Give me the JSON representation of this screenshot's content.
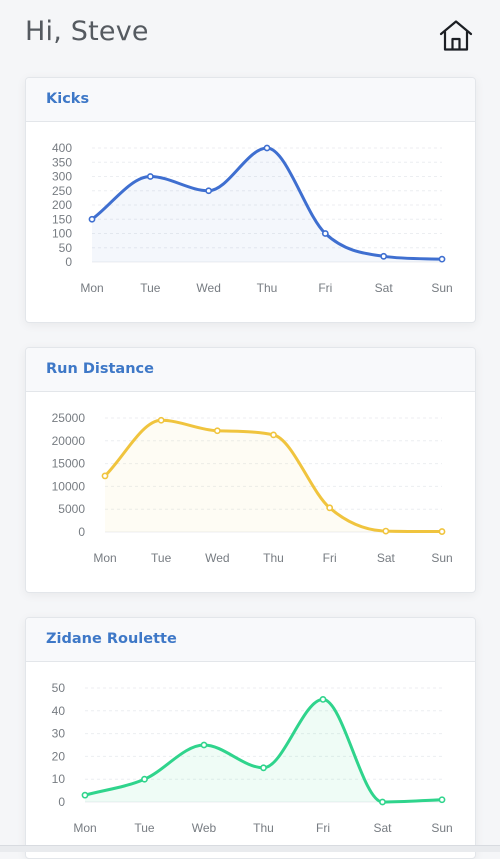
{
  "header": {
    "greeting": "Hi, Steve",
    "home_icon": "home-icon"
  },
  "colors": {
    "title": "#3e78c7",
    "kicks": "#3f6fd0",
    "run": "#f0c43e",
    "zidane": "#2fd48c"
  },
  "cards": [
    {
      "title": "Kicks"
    },
    {
      "title": "Run Distance"
    },
    {
      "title": "Zidane Roulette"
    }
  ],
  "chart_data": [
    {
      "type": "area",
      "title": "Kicks",
      "categories": [
        "Mon",
        "Tue",
        "Wed",
        "Thu",
        "Fri",
        "Sat",
        "Sun"
      ],
      "values": [
        150,
        300,
        250,
        400,
        100,
        20,
        10
      ],
      "yticks": [
        0,
        50,
        100,
        150,
        200,
        250,
        300,
        350,
        400
      ],
      "ylim": [
        0,
        400
      ],
      "color": "#3f6fd0",
      "fill": "rgba(63,111,208,0.06)",
      "grid": true
    },
    {
      "type": "area",
      "title": "Run Distance",
      "categories": [
        "Mon",
        "Tue",
        "Wed",
        "Thu",
        "Fri",
        "Sat",
        "Sun"
      ],
      "values": [
        12300,
        24500,
        22200,
        21300,
        5300,
        200,
        100
      ],
      "yticks": [
        0,
        5000,
        10000,
        15000,
        20000,
        25000
      ],
      "ylim": [
        0,
        25000
      ],
      "color": "#f0c43e",
      "fill": "rgba(240,196,62,0.06)",
      "grid": true
    },
    {
      "type": "area",
      "title": "Zidane Roulette",
      "categories": [
        "Mon",
        "Tue",
        "Web",
        "Thu",
        "Fri",
        "Sat",
        "Sun"
      ],
      "values": [
        3,
        10,
        25,
        15,
        45,
        0,
        1
      ],
      "yticks": [
        0,
        10,
        20,
        30,
        40,
        50
      ],
      "ylim": [
        0,
        50
      ],
      "color": "#2fd48c",
      "fill": "rgba(47,212,140,0.08)",
      "grid": true
    }
  ]
}
